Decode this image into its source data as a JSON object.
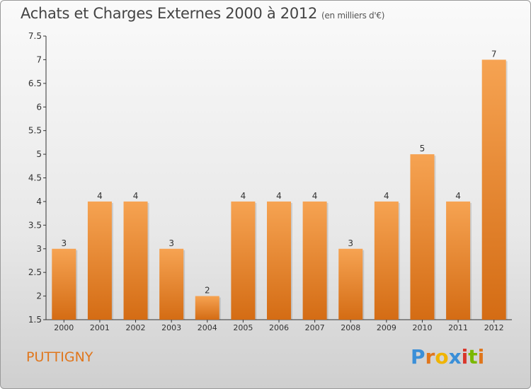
{
  "header": {
    "title": "Achats et Charges Externes 2000 à 2012",
    "unit": "(en milliers d'€)"
  },
  "footer": {
    "commune": "PUTTIGNY",
    "logo_text": "Proxiti"
  },
  "colors": {
    "bar_top": "#f6a352",
    "bar_bottom": "#d46c14",
    "commune_text": "#e0761c"
  },
  "chart_data": {
    "type": "bar",
    "title": "Achats et Charges Externes 2000 à 2012",
    "subtitle": "(en milliers d'€)",
    "categories": [
      "2000",
      "2001",
      "2002",
      "2003",
      "2004",
      "2005",
      "2006",
      "2007",
      "2008",
      "2009",
      "2010",
      "2011",
      "2012"
    ],
    "values": [
      3,
      4,
      4,
      3,
      2,
      4,
      4,
      4,
      3,
      4,
      5,
      4,
      7
    ],
    "data_labels": [
      "3",
      "4",
      "4",
      "3",
      "2",
      "4",
      "4",
      "4",
      "3",
      "4",
      "5",
      "4",
      "7"
    ],
    "ylim": [
      1.5,
      7.5
    ],
    "yticks": [
      "1.5",
      "2",
      "2.5",
      "3",
      "3.5",
      "4",
      "4.5",
      "5",
      "5.5",
      "6",
      "6.5",
      "7",
      "7.5"
    ],
    "grid": false,
    "xlabel": "",
    "ylabel": ""
  }
}
